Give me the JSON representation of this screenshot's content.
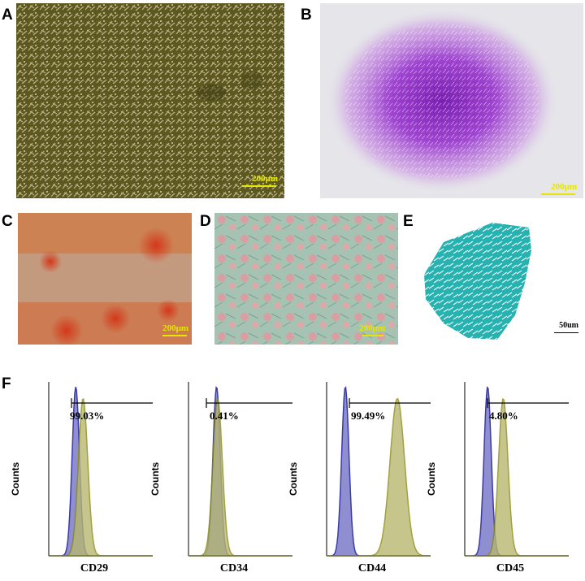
{
  "panels": {
    "A": {
      "letter": "A",
      "scale": "200μm"
    },
    "B": {
      "letter": "B",
      "scale": "200μm"
    },
    "C": {
      "letter": "C",
      "scale": "200μm"
    },
    "D": {
      "letter": "D",
      "scale": "200μm"
    },
    "E": {
      "letter": "E",
      "scale": "50um"
    },
    "F": {
      "letter": "F"
    }
  },
  "chart_data": [
    {
      "type": "area",
      "xlabel": "CD29",
      "ylabel": "Counts",
      "annotation": "99.03%",
      "control_peak": 0.26,
      "marker_peak": 0.33,
      "marker_spread": "narrow"
    },
    {
      "type": "area",
      "xlabel": "CD34",
      "ylabel": "Counts",
      "annotation": "0.41%",
      "control_peak": 0.27,
      "marker_peak": 0.28,
      "marker_spread": "narrow"
    },
    {
      "type": "area",
      "xlabel": "CD44",
      "ylabel": "Counts",
      "annotation": "99.49%",
      "control_peak": 0.18,
      "marker_peak": 0.68,
      "marker_spread": "wide"
    },
    {
      "type": "area",
      "xlabel": "CD45",
      "ylabel": "Counts",
      "annotation": "4.80%",
      "control_peak": 0.22,
      "marker_peak": 0.37,
      "marker_spread": "narrow"
    }
  ],
  "colors": {
    "control_fill": "#7b7bc9",
    "control_line": "#1a1a9a",
    "marker_fill": "#b7b770",
    "marker_line": "#8a8a10",
    "scale_yellow": "#e6e600",
    "scale_black": "#000000"
  }
}
